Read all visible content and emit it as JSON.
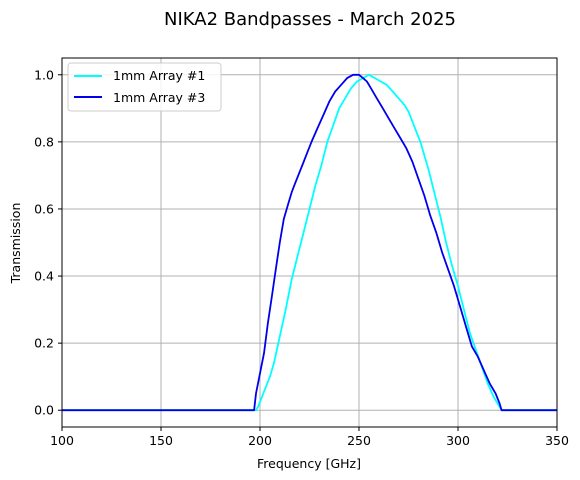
{
  "chart_data": {
    "type": "line",
    "title": "NIKA2 Bandpasses - March 2025",
    "xlabel": "Frequency [GHz]",
    "ylabel": "Transmission",
    "xlim": [
      100,
      350
    ],
    "ylim": [
      -0.05,
      1.05
    ],
    "xticks": [
      100,
      150,
      200,
      250,
      300,
      350
    ],
    "yticks": [
      0.0,
      0.2,
      0.4,
      0.6,
      0.8,
      1.0
    ],
    "xtick_labels": [
      "100",
      "150",
      "200",
      "250",
      "300",
      "350"
    ],
    "ytick_labels": [
      "0.0",
      "0.2",
      "0.4",
      "0.6",
      "0.8",
      "1.0"
    ],
    "grid": true,
    "legend_position": "top-left",
    "series": [
      {
        "name": "1mm Array #1",
        "color": "#00ffff",
        "x": [
          100,
          198,
          199,
          201,
          203,
          205,
          207,
          210,
          213,
          216,
          219,
          222,
          225,
          228,
          231,
          234,
          237,
          240,
          243,
          246,
          249,
          252,
          255,
          258,
          261,
          264,
          267,
          270,
          273,
          275,
          277,
          279,
          281,
          283,
          285,
          288,
          291,
          294,
          297,
          300,
          303,
          306,
          309,
          312,
          315,
          318,
          321,
          322,
          323,
          350
        ],
        "y": [
          0.0,
          0.0,
          0.01,
          0.04,
          0.07,
          0.1,
          0.14,
          0.22,
          0.3,
          0.39,
          0.46,
          0.53,
          0.6,
          0.67,
          0.73,
          0.8,
          0.85,
          0.9,
          0.93,
          0.96,
          0.98,
          0.99,
          1.0,
          0.99,
          0.98,
          0.97,
          0.95,
          0.93,
          0.91,
          0.89,
          0.86,
          0.83,
          0.8,
          0.76,
          0.72,
          0.65,
          0.58,
          0.5,
          0.43,
          0.37,
          0.3,
          0.23,
          0.18,
          0.13,
          0.08,
          0.04,
          0.01,
          0.0,
          0.0,
          0.0
        ]
      },
      {
        "name": "1mm Array #3",
        "color": "#0000ee",
        "x": [
          100,
          197,
          198,
          200,
          202,
          204,
          206,
          208,
          210,
          212,
          214,
          216,
          218,
          220,
          222,
          224,
          226,
          229,
          232,
          235,
          238,
          241,
          244,
          247,
          250,
          252,
          254,
          256,
          259,
          262,
          265,
          268,
          271,
          274,
          277,
          280,
          283,
          286,
          289,
          292,
          295,
          298,
          301,
          304,
          307,
          310,
          313,
          316,
          319,
          321,
          322,
          350
        ],
        "y": [
          0.0,
          0.0,
          0.05,
          0.11,
          0.17,
          0.26,
          0.34,
          0.42,
          0.5,
          0.57,
          0.61,
          0.65,
          0.68,
          0.71,
          0.74,
          0.77,
          0.8,
          0.84,
          0.88,
          0.92,
          0.95,
          0.97,
          0.99,
          1.0,
          1.0,
          0.99,
          0.98,
          0.96,
          0.93,
          0.9,
          0.87,
          0.84,
          0.81,
          0.78,
          0.74,
          0.69,
          0.64,
          0.58,
          0.53,
          0.47,
          0.42,
          0.37,
          0.31,
          0.25,
          0.19,
          0.16,
          0.12,
          0.08,
          0.05,
          0.02,
          0.0,
          0.0
        ]
      }
    ]
  }
}
